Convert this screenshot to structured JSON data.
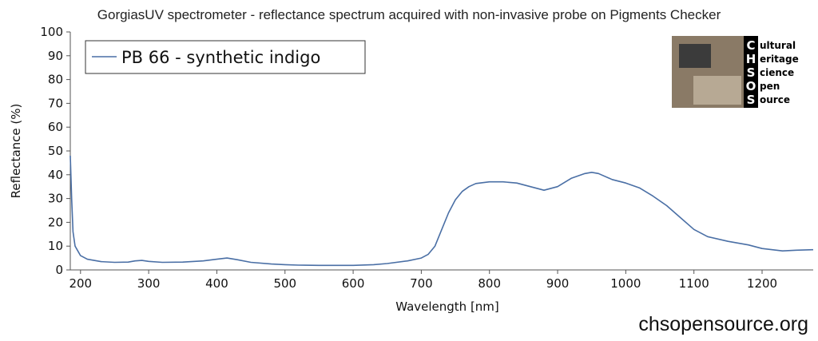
{
  "chart_data": {
    "type": "line",
    "title": "GorgiasUV spectrometer - reflectance spectrum acquired with non-invasive probe on Pigments Checker",
    "xlabel": "Wavelength [nm]",
    "ylabel": "Reflectance (%)",
    "xlim": [
      185,
      1275
    ],
    "ylim": [
      0,
      100
    ],
    "x_ticks": [
      200,
      300,
      400,
      500,
      600,
      700,
      800,
      900,
      1000,
      1100,
      1200
    ],
    "y_ticks": [
      0,
      10,
      20,
      30,
      40,
      50,
      60,
      70,
      80,
      90,
      100
    ],
    "grid": false,
    "legend_position": "top-left",
    "series": [
      {
        "name": "PB 66 - synthetic indigo",
        "color": "#4a6fa5",
        "x": [
          185,
          187,
          189,
          192,
          196,
          200,
          210,
          230,
          250,
          270,
          280,
          290,
          300,
          320,
          350,
          380,
          400,
          415,
          430,
          450,
          480,
          500,
          520,
          550,
          600,
          630,
          650,
          680,
          700,
          710,
          720,
          730,
          740,
          750,
          760,
          770,
          780,
          800,
          820,
          840,
          860,
          880,
          900,
          920,
          940,
          950,
          960,
          980,
          1000,
          1020,
          1040,
          1060,
          1080,
          1100,
          1120,
          1150,
          1180,
          1200,
          1230,
          1250,
          1275
        ],
        "y": [
          48,
          30,
          16,
          10,
          8,
          6,
          4.5,
          3.5,
          3.2,
          3.3,
          3.8,
          4.0,
          3.6,
          3.2,
          3.3,
          3.8,
          4.5,
          5.0,
          4.3,
          3.2,
          2.5,
          2.2,
          2.0,
          1.9,
          1.9,
          2.2,
          2.7,
          3.8,
          5.0,
          6.5,
          10,
          17,
          24,
          29.5,
          33,
          35,
          36.3,
          37,
          37,
          36.5,
          35,
          33.5,
          35,
          38.5,
          40.5,
          41,
          40.5,
          38,
          36.5,
          34.5,
          31,
          27,
          22,
          17,
          14,
          12,
          10.5,
          9,
          8,
          8.3,
          8.5
        ]
      }
    ]
  },
  "logo": {
    "letters": [
      "C",
      "H",
      "S",
      "O",
      "S"
    ],
    "words": [
      "ultural",
      "eritage",
      "cience",
      "pen",
      "ource"
    ]
  },
  "footer": {
    "url": "chsopensource.org"
  }
}
